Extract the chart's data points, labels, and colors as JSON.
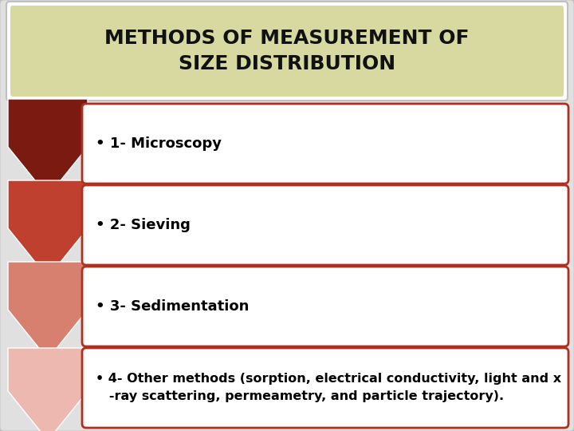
{
  "title_line1": "METHODS OF MEASUREMENT OF",
  "title_line2": "SIZE DISTRIBUTION",
  "title_bg_color": "#d8d9a0",
  "title_border_color": "#c8c8a0",
  "outer_bg_color": "#e8e8e8",
  "main_bg_color": "#c8c8c8",
  "item_bg_color": "#ffffff",
  "item_border_color": "#b03020",
  "item_text_color": "#000000",
  "arrow_colors": [
    "#7a1a10",
    "#c04030",
    "#d88070",
    "#edb8b0"
  ],
  "items": [
    "• 1- Microscopy",
    "• 2- Sieving",
    "• 3- Sedimentation",
    ""
  ],
  "item4_line1": "• 4- Other methods (sorption, electrical conductivity, light and x",
  "item4_line2": "   -ray scattering, permeametry, and particle trajectory)."
}
